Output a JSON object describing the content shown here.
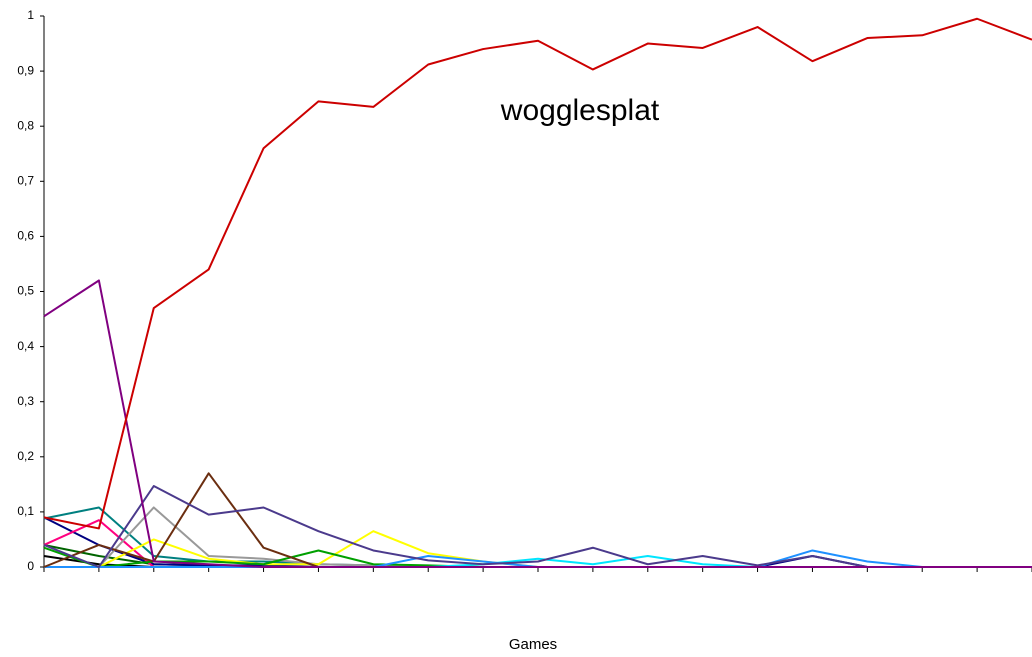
{
  "chart_data": {
    "type": "line",
    "annotation": "wogglesplat",
    "x_label": "Games",
    "categories": [
      null,
      null,
      null,
      null,
      null,
      null,
      null,
      null,
      null,
      null,
      null,
      null,
      null,
      null,
      null,
      null,
      null,
      null,
      null
    ],
    "ylim": [
      0,
      1
    ],
    "yticks": [
      0,
      {
        "value": 0.1,
        "label": "0,1"
      },
      {
        "value": 0.2,
        "label": "0,2"
      },
      {
        "value": 0.3,
        "label": "0,3"
      },
      {
        "value": 0.4,
        "label": "0,4"
      },
      {
        "value": 0.5,
        "label": "0,5"
      },
      {
        "value": 0.6,
        "label": "0,6"
      },
      {
        "value": 0.7,
        "label": "0,7"
      },
      {
        "value": 0.8,
        "label": "0,8"
      },
      {
        "value": 0.9,
        "label": "0,9"
      },
      1
    ],
    "grid": false,
    "series": [
      {
        "color": "#000000",
        "values": [
          0.02,
          0.005,
          0,
          0,
          0,
          0,
          0,
          0,
          0,
          0,
          0,
          0,
          0,
          0,
          0,
          0,
          0,
          0,
          0
        ]
      },
      {
        "color": "#006400",
        "values": [
          0.04,
          0.02,
          0.005,
          0.003,
          0,
          0,
          0,
          0,
          0,
          0,
          0,
          0,
          0,
          0,
          0,
          0,
          0,
          0,
          0
        ]
      },
      {
        "color": "#000080",
        "values": [
          0.09,
          0.04,
          0.005,
          0.003,
          0.003,
          0,
          0,
          0,
          0,
          0,
          0,
          0,
          0,
          0,
          0.02,
          0,
          0,
          0,
          0
        ]
      },
      {
        "color": "#008080",
        "values": [
          0.088,
          0.108,
          0.02,
          0.01,
          0.01,
          0.005,
          0.003,
          0,
          0,
          0,
          0,
          0,
          0,
          0,
          0,
          0,
          0,
          0,
          0
        ]
      },
      {
        "color": "#ff0080",
        "values": [
          0.04,
          0.085,
          0,
          0,
          0,
          0,
          0,
          0,
          0,
          0,
          0,
          0,
          0,
          0,
          0,
          0,
          0,
          0,
          0
        ]
      },
      {
        "color": "#999999",
        "values": [
          0,
          0,
          0.108,
          0.02,
          0.015,
          0.005,
          0.003,
          0,
          0,
          0,
          0,
          0,
          0,
          0,
          0,
          0,
          0,
          0,
          0
        ]
      },
      {
        "color": "#ffff00",
        "values": [
          0,
          0,
          0.05,
          0.015,
          0.005,
          0.005,
          0.065,
          0.025,
          0.01,
          0,
          0,
          0,
          0,
          0,
          0,
          0,
          0,
          0,
          0
        ]
      },
      {
        "color": "#00a000",
        "values": [
          0.035,
          0,
          0.01,
          0.01,
          0.005,
          0.03,
          0.005,
          0.003,
          0,
          0,
          0,
          0,
          0,
          0,
          0,
          0,
          0,
          0,
          0
        ]
      },
      {
        "color": "#00e5ff",
        "values": [
          0,
          0,
          0,
          0,
          0,
          0,
          0,
          0,
          0.005,
          0.015,
          0.005,
          0.02,
          0.005,
          0,
          0,
          0,
          0,
          0,
          0
        ]
      },
      {
        "color": "#1e90ff",
        "values": [
          0,
          0,
          0,
          0,
          0,
          0,
          0,
          0.02,
          0.01,
          0,
          0,
          0,
          0,
          0,
          0.03,
          0.01,
          0,
          0,
          0
        ]
      },
      {
        "color": "#6b2e10",
        "values": [
          0,
          0.04,
          0.01,
          0.17,
          0.035,
          0,
          0,
          0,
          0,
          0,
          0,
          0,
          0,
          0,
          0,
          0,
          0,
          0,
          0
        ]
      },
      {
        "color": "#4b3a8c",
        "values": [
          0.04,
          0,
          0.147,
          0.095,
          0.108,
          0.065,
          0.03,
          0.012,
          0.005,
          0.01,
          0.035,
          0.005,
          0.02,
          0.003,
          0.02,
          0,
          0,
          0,
          0
        ]
      },
      {
        "color": "#800080",
        "values": [
          0.455,
          0.52,
          0.01,
          0.005,
          0,
          0,
          0,
          0,
          0,
          0,
          0,
          0,
          0,
          0,
          0,
          0,
          0,
          0,
          0
        ]
      },
      {
        "color": "#cc0000",
        "values": [
          0.09,
          0.07,
          0.47,
          0.54,
          0.76,
          0.845,
          0.835,
          0.912,
          0.94,
          0.955,
          0.903,
          0.95,
          0.942,
          0.98,
          0.918,
          0.96,
          0.965,
          0.995,
          0.957
        ]
      }
    ]
  }
}
